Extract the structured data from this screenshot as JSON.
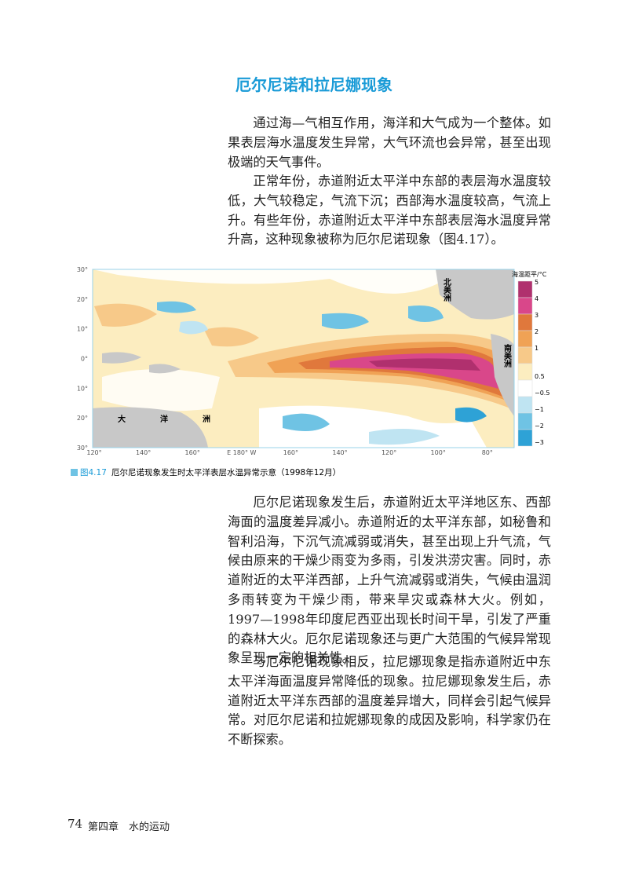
{
  "title": "厄尔尼诺和拉尼娜现象",
  "paragraphs_top": [
    "通过海—气相互作用，海洋和大气成为一个整体。如果表层海水温度发生异常，大气环流也会异常，甚至出现极端的天气事件。",
    "正常年份，赤道附近太平洋中东部的表层海水温度较低，大气较稳定，气流下沉；西部海水温度较高，气流上升。有些年份，赤道附近太平洋中东部表层海水温度异常升高，这种现象被称为厄尔尼诺现象（图4.17）。"
  ],
  "figure": {
    "caption_number": "图4.17",
    "caption": "厄尔尼诺现象发生时太平洋表层水温异常示意（1998年12月）",
    "legend_title": "海温距平/°C",
    "legend": [
      {
        "label": "5",
        "color": "#b0306e"
      },
      {
        "label": "4",
        "color": "#d9478a"
      },
      {
        "label": "3",
        "color": "#e0783c"
      },
      {
        "label": "2",
        "color": "#f0a255"
      },
      {
        "label": "1",
        "color": "#f7c989"
      },
      {
        "label": "0.5",
        "color": "#fcedc0"
      },
      {
        "label": "−0.5",
        "color": "#ffffff"
      },
      {
        "label": "−1",
        "color": "#bfe4f2"
      },
      {
        "label": "−2",
        "color": "#6fc3e4"
      },
      {
        "label": "−3",
        "color": "#2ea2d6"
      }
    ],
    "lat_labels": [
      "30°",
      "20°",
      "10°",
      "0°",
      "10°",
      "20°",
      "30°"
    ],
    "lon_labels": [
      "120°",
      "140°",
      "160°",
      "E 180° W",
      "160°",
      "140°",
      "120°",
      "100°",
      "80°"
    ],
    "regions": {
      "north_america": "北美洲",
      "south_america": "南美洲",
      "oceania": "大洋洲"
    }
  },
  "paragraphs_bottom": [
    "厄尔尼诺现象发生后，赤道附近太平洋地区东、西部海面的温度差异减小。赤道附近的太平洋东部，如秘鲁和智利沿海，下沉气流减弱或消失，甚至出现上升气流，气候由原来的干燥少雨变为多雨，引发洪涝灾害。同时，赤道附近的太平洋西部，上升气流减弱或消失，气候由温润多雨转变为干燥少雨，带来旱灾或森林大火。例如，1997—1998年印度尼西亚出现长时间干旱，引发了严重的森林大火。厄尔尼诺现象还与更广大范围的气候异常现象呈现一定的相关性。",
    "与厄尔尼诺现象相反，拉尼娜现象是指赤道附近中东太平洋海面温度异常降低的现象。拉尼娜现象发生后，赤道附近太平洋东西部的温度差异增大，同样会引起气候异常。对厄尔尼诺和拉妮娜现象的成因及影响，科学家仍在不断探索。"
  ],
  "footer": {
    "page": "74",
    "chapter": "第四章　水的运动"
  }
}
